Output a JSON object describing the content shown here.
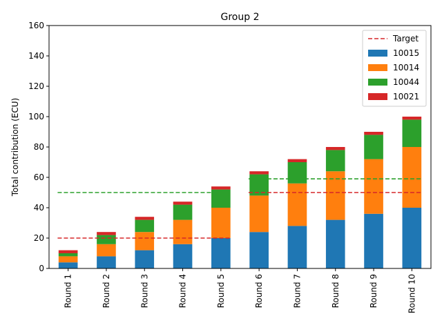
{
  "chart_data": {
    "type": "bar",
    "stacked": true,
    "title": "Group 2",
    "xlabel": "",
    "ylabel": "Total contribution (ECU)",
    "ylim": [
      0,
      160
    ],
    "yticks": [
      0,
      20,
      40,
      60,
      80,
      100,
      120,
      140,
      160
    ],
    "grid": false,
    "legend_position": "top-right",
    "categories": [
      "Round 1",
      "Round 2",
      "Round 3",
      "Round 4",
      "Round 5",
      "Round 6",
      "Round 7",
      "Round 8",
      "Round 9",
      "Round 10"
    ],
    "series": [
      {
        "name": "10015",
        "color": "#1f77b4",
        "values": [
          4,
          8,
          12,
          16,
          20,
          24,
          28,
          32,
          36,
          40
        ]
      },
      {
        "name": "10014",
        "color": "#ff7f0e",
        "values": [
          4,
          8,
          12,
          16,
          20,
          24,
          28,
          32,
          36,
          40
        ]
      },
      {
        "name": "10044",
        "color": "#2ca02c",
        "values": [
          2,
          6,
          8,
          10,
          12,
          14,
          14,
          14,
          16,
          18
        ]
      },
      {
        "name": "10021",
        "color": "#d62728",
        "values": [
          2,
          2,
          2,
          2,
          2,
          2,
          2,
          2,
          2,
          2
        ]
      }
    ],
    "target_lines": [
      {
        "name": "Target",
        "color": "#d62728",
        "segments": [
          {
            "from": "Round 1",
            "to": "Round 5",
            "y": 20
          },
          {
            "from": "Round 6",
            "to": "Round 10",
            "y": 50
          }
        ]
      },
      {
        "name": "",
        "color": "#2ca02c",
        "segments": [
          {
            "from": "Round 1",
            "to": "Round 5",
            "y": 50
          },
          {
            "from": "Round 6",
            "to": "Round 10",
            "y": 59
          }
        ]
      }
    ]
  }
}
